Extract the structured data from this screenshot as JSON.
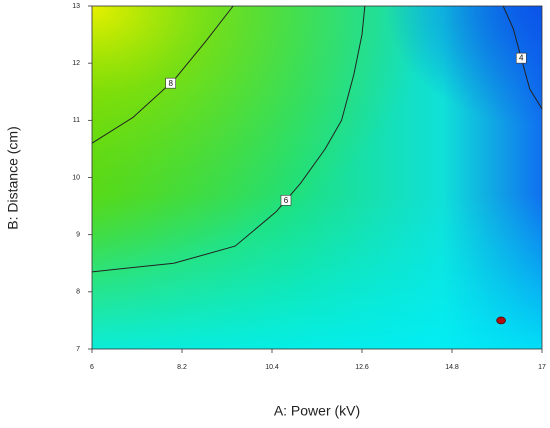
{
  "chart_data": {
    "type": "contour",
    "x_label": "A: Power (kV)",
    "y_label": "B: Distance (cm)",
    "xlim": [
      6,
      17
    ],
    "xticks": [
      6,
      8.2,
      10.4,
      12.6,
      14.8,
      17
    ],
    "ylim": [
      7,
      13
    ],
    "yticks": [
      7,
      8,
      9,
      10,
      11,
      12,
      13
    ],
    "line_color": "#222222",
    "contours": [
      {
        "level": 8,
        "x": [
          6,
          7,
          8,
          8.8,
          9.45
        ],
        "y": [
          10.6,
          11.05,
          11.7,
          12.4,
          13
        ]
      },
      {
        "level": 6,
        "x": [
          6,
          8,
          9.5,
          10.5,
          11.1,
          11.7,
          12.1,
          12.4,
          12.6,
          12.67
        ],
        "y": [
          8.35,
          8.5,
          8.8,
          9.4,
          9.9,
          10.5,
          11,
          11.8,
          12.5,
          13
        ]
      },
      {
        "level": 4,
        "x": [
          16.05,
          16.3,
          16.45,
          16.7,
          17
        ],
        "y": [
          13,
          12.6,
          12.2,
          11.55,
          11.2
        ]
      }
    ],
    "points": {
      "color": "#b01010",
      "x": [
        16
      ],
      "y": [
        7.5
      ]
    }
  }
}
